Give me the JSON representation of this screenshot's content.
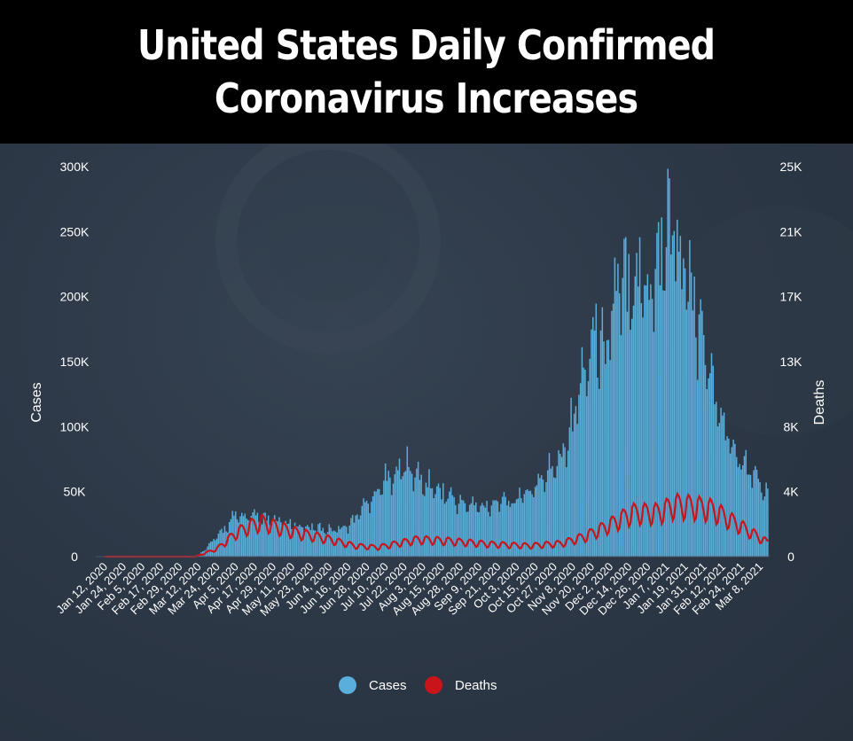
{
  "title": {
    "line1": "United States Daily Confirmed",
    "line2": "Coronavirus Increases"
  },
  "chart_data": {
    "type": "bar",
    "title": "United States Daily Confirmed Coronavirus Increases",
    "ylabel": "Cases",
    "y2label": "Deaths",
    "ylim": [
      0,
      300000
    ],
    "y2lim": [
      0,
      25000
    ],
    "yticks": [
      "300K",
      "250K",
      "200K",
      "150K",
      "100K",
      "50K",
      "0"
    ],
    "y2ticks": [
      "25K",
      "21K",
      "17K",
      "13K",
      "8K",
      "4K",
      "0"
    ],
    "x_start": "2020-01-12",
    "x_end": "2021-03-12",
    "xtick_labels": [
      "Jan 12, 2020",
      "Jan 24, 2020",
      "Feb 5, 2020",
      "Feb 17, 2020",
      "Feb 29, 2020",
      "Mar 12, 2020",
      "Mar 24, 2020",
      "Apr 5, 2020",
      "Apr 17, 2020",
      "Apr 29, 2020",
      "May 11, 2020",
      "May 23, 2020",
      "Jun 4, 2020",
      "Jun 16, 2020",
      "Jun 28, 2020",
      "Jul 10, 2020",
      "Jul 22, 2020",
      "Aug 3, 2020",
      "Aug 15, 2020",
      "Aug 28, 2020",
      "Sep 9, 2020",
      "Sep 21, 2020",
      "Oct 3, 2020",
      "Oct 15, 2020",
      "Oct 27, 2020",
      "Nov 8, 2020",
      "Nov 20, 2020",
      "Dec 2, 2020",
      "Dec 14, 2020",
      "Dec 26, 2020",
      "Jan 7, 2021",
      "Jan 19, 2021",
      "Jan 31, 2021",
      "Feb 12, 2021",
      "Feb 24, 2021",
      "Mar 8, 2021"
    ],
    "legend": {
      "placement": "bottom-center"
    },
    "colors": {
      "cases": "#5aaedb",
      "deaths": "#c8141a"
    },
    "series": [
      {
        "name": "Cases",
        "type": "bar",
        "axis": "left",
        "x": [
          "2020-01-12",
          "2020-03-01",
          "2020-03-12",
          "2020-03-20",
          "2020-03-28",
          "2020-04-04",
          "2020-04-10",
          "2020-04-24",
          "2020-05-08",
          "2020-05-22",
          "2020-06-05",
          "2020-06-16",
          "2020-06-24",
          "2020-07-04",
          "2020-07-16",
          "2020-07-24",
          "2020-08-05",
          "2020-08-15",
          "2020-08-28",
          "2020-09-09",
          "2020-09-20",
          "2020-10-01",
          "2020-10-10",
          "2020-10-20",
          "2020-10-30",
          "2020-11-06",
          "2020-11-14",
          "2020-11-20",
          "2020-11-27",
          "2020-12-04",
          "2020-12-11",
          "2020-12-18",
          "2020-12-26",
          "2021-01-02",
          "2021-01-08",
          "2021-01-14",
          "2021-01-21",
          "2021-01-28",
          "2021-02-05",
          "2021-02-12",
          "2021-02-20",
          "2021-03-01",
          "2021-03-08",
          "2021-03-12"
        ],
        "values": [
          0,
          0,
          1000,
          10000,
          20000,
          30000,
          31000,
          28000,
          25000,
          22000,
          21000,
          23000,
          35000,
          50000,
          65000,
          68000,
          55000,
          50000,
          40000,
          38000,
          42000,
          43000,
          50000,
          60000,
          78000,
          100000,
          140000,
          170000,
          160000,
          195000,
          210000,
          220000,
          205000,
          230000,
          260000,
          240000,
          205000,
          165000,
          130000,
          100000,
          75000,
          65000,
          55000,
          45000
        ]
      },
      {
        "name": "Deaths",
        "type": "line",
        "axis": "right",
        "x": [
          "2020-01-12",
          "2020-03-10",
          "2020-03-24",
          "2020-04-05",
          "2020-04-15",
          "2020-04-22",
          "2020-05-01",
          "2020-05-15",
          "2020-05-31",
          "2020-06-20",
          "2020-07-05",
          "2020-07-31",
          "2020-08-20",
          "2020-09-15",
          "2020-10-10",
          "2020-10-31",
          "2020-11-15",
          "2020-11-30",
          "2020-12-15",
          "2020-12-31",
          "2021-01-12",
          "2021-01-25",
          "2021-02-05",
          "2021-02-15",
          "2021-02-25",
          "2021-03-12"
        ],
        "values": [
          0,
          0,
          500,
          1500,
          2000,
          2200,
          1900,
          1500,
          1200,
          700,
          600,
          1100,
          1000,
          800,
          700,
          850,
          1300,
          2000,
          2800,
          2800,
          3300,
          3200,
          3000,
          2400,
          1800,
          900
        ]
      }
    ]
  }
}
